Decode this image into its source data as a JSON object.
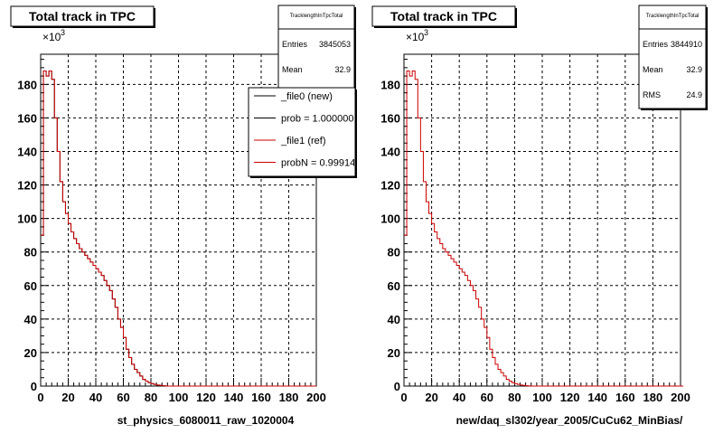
{
  "footer_text": "",
  "chart_data": [
    {
      "type": "histogram",
      "title": "Total track in TPC",
      "xlabel": "st_physics_6080011_raw_1020004",
      "ylabel": "",
      "y_multiplier": "×10",
      "y_multiplier_exp": "3",
      "xlim": [
        0,
        200
      ],
      "ylim": [
        0,
        198
      ],
      "xticks": [
        0,
        20,
        40,
        60,
        80,
        100,
        120,
        140,
        160,
        180,
        200
      ],
      "yticks": [
        0,
        20,
        40,
        60,
        80,
        100,
        120,
        140,
        160,
        180
      ],
      "grid": true,
      "stats": {
        "name": "TracklengthInTpcTotal",
        "entries_label": "Entries",
        "entries_value": "3845053",
        "mean_label": "Mean",
        "mean_value": "32.9"
      },
      "legend": {
        "placement": "top-right",
        "entries": [
          {
            "label": "_file0 (new)",
            "color": "#000000"
          },
          {
            "label": "prob = 1.000000",
            "color": "#000000"
          },
          {
            "label": "_file1 (ref)",
            "color": "#cc0000"
          },
          {
            "label": "probN = 0.999142",
            "color": "#cc0000"
          }
        ]
      },
      "bin_width": 2,
      "series": [
        {
          "color": "#000000",
          "values": [
            90,
            188,
            185,
            188,
            183,
            160,
            140,
            122,
            110,
            103,
            97,
            92,
            88,
            85,
            82,
            80,
            78,
            76,
            74,
            72,
            70,
            68,
            66,
            63,
            60,
            57,
            52,
            47,
            40,
            35,
            29,
            22,
            17,
            13,
            10,
            8,
            6,
            4,
            3,
            2,
            1.5,
            1,
            0.6,
            0.4,
            0.2,
            0.1,
            0,
            0,
            0,
            0,
            0,
            0,
            0,
            0,
            0,
            0,
            0,
            0,
            0,
            0,
            0,
            0,
            0,
            0,
            0,
            0,
            0,
            0,
            0,
            0,
            0,
            0,
            0,
            0,
            0,
            0,
            0,
            0,
            0,
            0,
            0,
            0,
            0,
            0,
            0,
            0,
            0,
            0,
            0,
            0,
            0,
            0,
            0,
            0,
            0,
            0,
            0,
            0,
            0,
            0
          ]
        },
        {
          "color": "#cc0000",
          "values": [
            90,
            188,
            185,
            188,
            183,
            160,
            140,
            122,
            110,
            103,
            97,
            92,
            88,
            85,
            82,
            80,
            78,
            76,
            74,
            72,
            70,
            68,
            66,
            63,
            60,
            57,
            52,
            47,
            40,
            35,
            29,
            22,
            17,
            13,
            10,
            8,
            6,
            4,
            3,
            2,
            1.5,
            1,
            0.6,
            0.4,
            0.2,
            0.1,
            0,
            0,
            0,
            0,
            0,
            0,
            0,
            0,
            0,
            0,
            0,
            0,
            0,
            0,
            0,
            0,
            0,
            0,
            0,
            0,
            0,
            0,
            0,
            0,
            0,
            0,
            0,
            0,
            0,
            0,
            0,
            0,
            0,
            0,
            0,
            0,
            0,
            0,
            0,
            0,
            0,
            0,
            0,
            0,
            0,
            0,
            0,
            0,
            0,
            0,
            0,
            0,
            0,
            0
          ]
        }
      ]
    },
    {
      "type": "histogram",
      "title": "Total track in TPC",
      "xlabel": "new/daq_sl302/year_2005/CuCu62_MinBias/",
      "ylabel": "",
      "y_multiplier": "×10",
      "y_multiplier_exp": "3",
      "xlim": [
        0,
        200
      ],
      "ylim": [
        0,
        198
      ],
      "xticks": [
        0,
        20,
        40,
        60,
        80,
        100,
        120,
        140,
        160,
        180,
        200
      ],
      "yticks": [
        0,
        20,
        40,
        60,
        80,
        100,
        120,
        140,
        160,
        180
      ],
      "grid": true,
      "stats": {
        "name": "TracklengthInTpcTotal",
        "entries_label": "Entries",
        "entries_value": "3844910",
        "mean_label": "Mean",
        "mean_value": "32.9",
        "rms_label": "RMS",
        "rms_value": "24.9"
      },
      "bin_width": 2,
      "series": [
        {
          "color": "#cc0000",
          "values": [
            90,
            188,
            185,
            188,
            183,
            160,
            140,
            122,
            110,
            103,
            97,
            92,
            88,
            85,
            82,
            80,
            78,
            76,
            74,
            72,
            70,
            68,
            66,
            63,
            60,
            57,
            52,
            47,
            40,
            35,
            29,
            22,
            17,
            13,
            10,
            8,
            6,
            4,
            3,
            2,
            1.5,
            1,
            0.6,
            0.4,
            0.2,
            0.1,
            0,
            0,
            0,
            0,
            0,
            0,
            0,
            0,
            0,
            0,
            0,
            0,
            0,
            0,
            0,
            0,
            0,
            0,
            0,
            0,
            0,
            0,
            0,
            0,
            0,
            0,
            0,
            0,
            0,
            0,
            0,
            0,
            0,
            0,
            0,
            0,
            0,
            0,
            0,
            0,
            0,
            0,
            0,
            0,
            0,
            0,
            0,
            0,
            0,
            0,
            0,
            0,
            0,
            0,
            0
          ]
        }
      ]
    }
  ]
}
